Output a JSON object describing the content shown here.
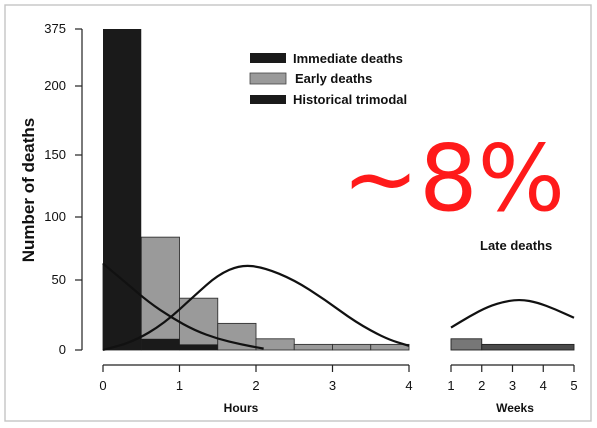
{
  "chart_data": {
    "type": "bar",
    "ylabel": "Number of deaths",
    "y_ticks": [
      "0",
      "50",
      "100",
      "150",
      "200",
      "375"
    ],
    "hours_axis": {
      "label": "Hours",
      "ticks": [
        "0",
        "1",
        "2",
        "3",
        "4"
      ],
      "range": [
        0,
        4
      ]
    },
    "weeks_axis": {
      "label": "Weeks",
      "ticks": [
        "1",
        "2",
        "3",
        "4",
        "5"
      ],
      "range": [
        1,
        5
      ]
    },
    "legend": [
      {
        "label": "Immediate deaths",
        "color": "#1a1a1a"
      },
      {
        "label": "Early deaths",
        "color": "#9a9a9a"
      },
      {
        "label": "Historical trimodal",
        "color": "#1a1a1a"
      }
    ],
    "hours_bins": [
      {
        "start": 0.0,
        "end": 0.5,
        "early": 63,
        "immediate": 375
      },
      {
        "start": 0.5,
        "end": 1.0,
        "early": 84,
        "immediate": 8
      },
      {
        "start": 1.0,
        "end": 1.5,
        "early": 37,
        "immediate": 4
      },
      {
        "start": 1.5,
        "end": 2.0,
        "early": 19,
        "immediate": 0
      },
      {
        "start": 2.0,
        "end": 2.5,
        "early": 8,
        "immediate": 0
      },
      {
        "start": 2.5,
        "end": 3.0,
        "early": 4,
        "immediate": 0
      },
      {
        "start": 3.0,
        "end": 3.5,
        "early": 4,
        "immediate": 0
      },
      {
        "start": 3.5,
        "end": 4.0,
        "early": 4,
        "immediate": 0
      }
    ],
    "weeks_bins": [
      {
        "start": 1,
        "end": 2,
        "value": 8
      },
      {
        "start": 2,
        "end": 5,
        "value": 4
      }
    ],
    "curves": [
      {
        "name": "Immediate deaths",
        "segment": "hours",
        "points": [
          [
            0.0,
            63
          ],
          [
            0.3,
            48
          ],
          [
            0.6,
            34
          ],
          [
            0.9,
            23
          ],
          [
            1.2,
            14
          ],
          [
            1.5,
            8
          ],
          [
            1.8,
            4
          ],
          [
            2.1,
            1
          ]
        ]
      },
      {
        "name": "Early deaths",
        "segment": "hours",
        "points": [
          [
            0.0,
            0
          ],
          [
            0.4,
            6
          ],
          [
            0.8,
            19
          ],
          [
            1.2,
            39
          ],
          [
            1.5,
            54
          ],
          [
            1.8,
            62
          ],
          [
            2.1,
            60
          ],
          [
            2.5,
            50
          ],
          [
            2.9,
            36
          ],
          [
            3.3,
            20
          ],
          [
            3.7,
            8
          ],
          [
            4.0,
            3
          ]
        ]
      },
      {
        "name": "Late deaths",
        "segment": "weeks",
        "points": [
          [
            1.0,
            16
          ],
          [
            1.6,
            24
          ],
          [
            2.2,
            31
          ],
          [
            2.8,
            35
          ],
          [
            3.3,
            36
          ],
          [
            3.8,
            34
          ],
          [
            4.4,
            29
          ],
          [
            5.0,
            23
          ]
        ]
      }
    ],
    "annotations": [
      "Late deaths",
      "~8%"
    ]
  }
}
